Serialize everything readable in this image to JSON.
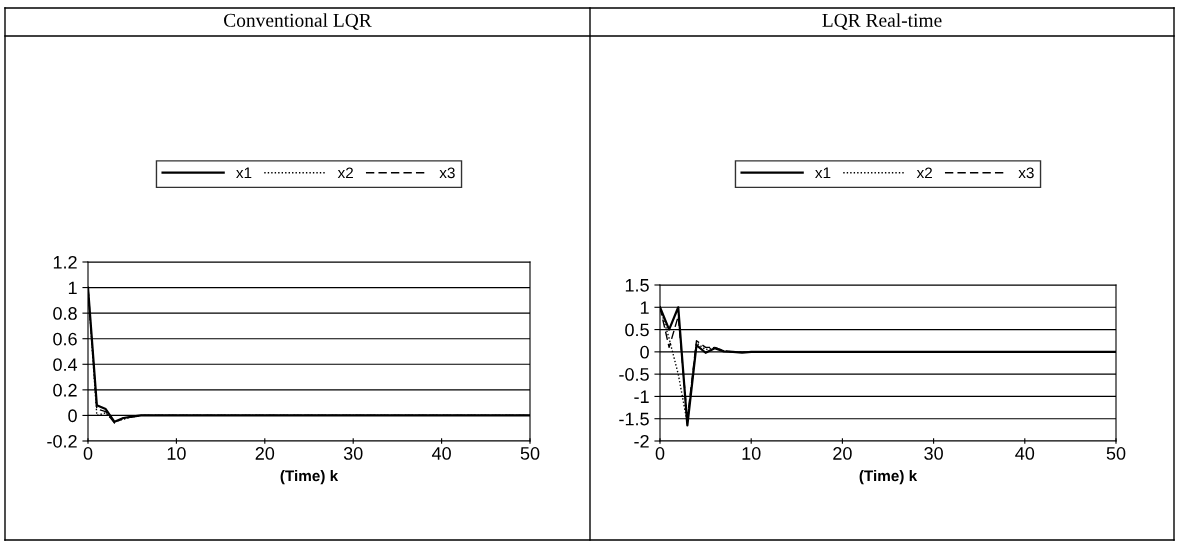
{
  "chart_data": [
    {
      "type": "line",
      "title": "Conventional LQR",
      "xlabel": "(Time) k",
      "xlim": [
        0,
        50
      ],
      "xticks": [
        0,
        10,
        20,
        30,
        40,
        50
      ],
      "ylim": [
        -0.2,
        1.2
      ],
      "yticks": [
        -0.2,
        0,
        0.2,
        0.4,
        0.6,
        0.8,
        1,
        1.2
      ],
      "grid": "y",
      "legend": "top",
      "series": [
        {
          "name": "x1",
          "color": "#000000",
          "line_style": "solid",
          "x": [
            0,
            1,
            2,
            3,
            4,
            5,
            6,
            50
          ],
          "values": [
            1,
            0.08,
            0.05,
            -0.05,
            -0.02,
            -0.01,
            0,
            0
          ]
        },
        {
          "name": "x2",
          "color": "#000000",
          "line_style": "dotted",
          "x": [
            0,
            1,
            2,
            3,
            4,
            5,
            6,
            50
          ],
          "values": [
            1,
            0,
            0.02,
            -0.05,
            -0.03,
            -0.01,
            0,
            0
          ]
        },
        {
          "name": "x3",
          "color": "#000000",
          "line_style": "dashed",
          "x": [
            0,
            1,
            2,
            3,
            4,
            5,
            6,
            50
          ],
          "values": [
            1,
            0.05,
            0.03,
            -0.06,
            -0.02,
            -0.01,
            0,
            0
          ]
        }
      ]
    },
    {
      "type": "line",
      "title": "LQR Real-time",
      "xlabel": "(Time) k",
      "xlim": [
        0,
        50
      ],
      "xticks": [
        0,
        10,
        20,
        30,
        40,
        50
      ],
      "ylim": [
        -2,
        1.5
      ],
      "yticks": [
        -2,
        -1.5,
        -1,
        -0.5,
        0,
        0.5,
        1,
        1.5
      ],
      "grid": "y",
      "legend": "top",
      "series": [
        {
          "name": "x1",
          "color": "#000000",
          "line_style": "solid",
          "x": [
            0,
            1,
            2,
            3,
            4,
            5,
            6,
            7,
            8,
            9,
            10,
            50
          ],
          "values": [
            1,
            0.5,
            1,
            -1.65,
            0.15,
            -0.02,
            0.08,
            0.01,
            0,
            -0.02,
            0,
            0
          ]
        },
        {
          "name": "x2",
          "color": "#000000",
          "line_style": "dotted",
          "x": [
            0,
            1,
            2,
            3,
            4,
            5,
            6,
            7,
            8,
            9,
            10,
            50
          ],
          "values": [
            1,
            0.3,
            -0.5,
            -1.6,
            0.2,
            0.05,
            0.1,
            0.02,
            0,
            -0.01,
            0,
            0
          ]
        },
        {
          "name": "x3",
          "color": "#000000",
          "line_style": "dashed",
          "x": [
            0,
            1,
            2,
            3,
            4,
            5,
            6,
            7,
            8,
            9,
            10,
            50
          ],
          "values": [
            1,
            0.1,
            0.8,
            -1.5,
            0.25,
            0.1,
            0.1,
            0.02,
            0,
            -0.01,
            0,
            0
          ]
        }
      ]
    }
  ]
}
